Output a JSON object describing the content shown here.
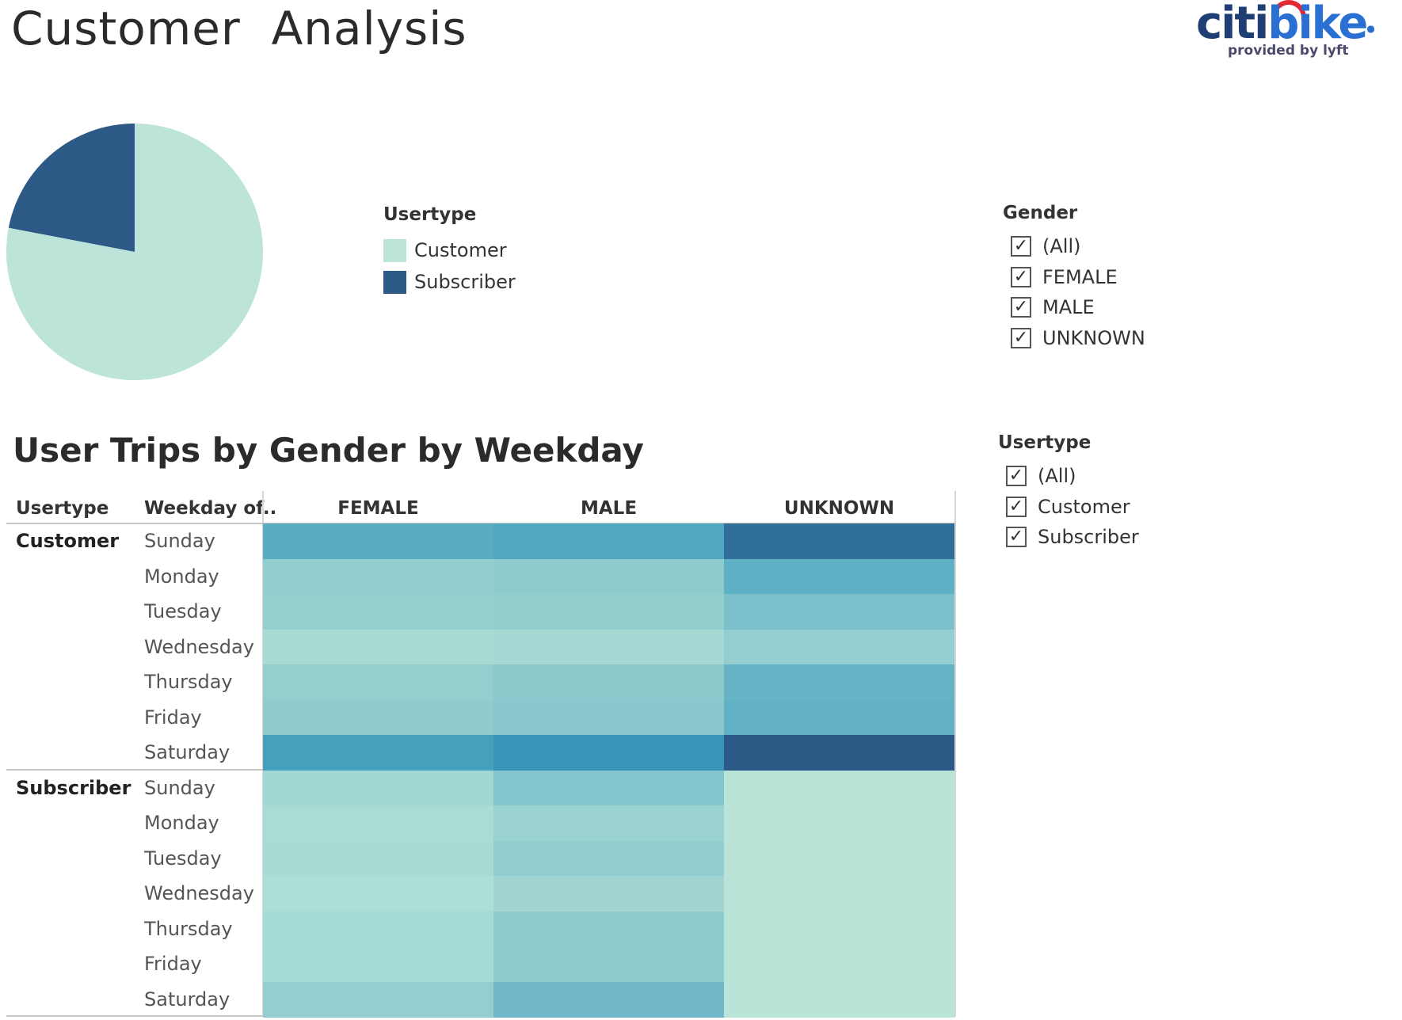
{
  "header": {
    "title": "Customer  Analysis"
  },
  "logo": {
    "word_citi": "citi",
    "word_bike": "bike",
    "tagline": "provided by lyft"
  },
  "pie_legend": {
    "title": "Usertype",
    "items": [
      {
        "label": "Customer",
        "color": "#bce4d8"
      },
      {
        "label": "Subscriber",
        "color": "#2c5985"
      }
    ]
  },
  "pie_chart": {
    "type": "pie",
    "slices": [
      {
        "label": "Customer",
        "fraction": 0.78,
        "color": "#bce4d8"
      },
      {
        "label": "Subscriber",
        "fraction": 0.22,
        "color": "#2c5985"
      }
    ]
  },
  "gender_filter": {
    "title": "Gender",
    "options": [
      {
        "label": "(All)",
        "checked": true
      },
      {
        "label": "FEMALE",
        "checked": true
      },
      {
        "label": "MALE",
        "checked": true
      },
      {
        "label": "UNKNOWN",
        "checked": true
      }
    ]
  },
  "usertype_filter": {
    "title": "Usertype",
    "options": [
      {
        "label": "(All)",
        "checked": true
      },
      {
        "label": "Customer",
        "checked": true
      },
      {
        "label": "Subscriber",
        "checked": true
      }
    ]
  },
  "table": {
    "title": "User Trips by Gender by Weekday",
    "row_header_usertype": "Usertype",
    "row_header_weekday": "Weekday of..",
    "columns": [
      "FEMALE",
      "MALE",
      "UNKNOWN"
    ],
    "groups": [
      {
        "label": "Customer",
        "days": [
          "Sunday",
          "Monday",
          "Tuesday",
          "Wednesday",
          "Thursday",
          "Friday",
          "Saturday"
        ],
        "colors": [
          [
            "#5aadc1",
            "#52a8bf",
            "#306f98"
          ],
          [
            "#92cdcf",
            "#8ecbce",
            "#5eb0c4"
          ],
          [
            "#96cfd0",
            "#93cecf",
            "#7bbfca"
          ],
          [
            "#aadbd3",
            "#a6d9d3",
            "#95ced0"
          ],
          [
            "#94cecf",
            "#8cc9cd",
            "#65b3c5"
          ],
          [
            "#90ccce",
            "#8ac8cd",
            "#62b1c4"
          ],
          [
            "#45a0bd",
            "#3a96b8",
            "#2c5985"
          ]
        ]
      },
      {
        "label": "Subscriber",
        "days": [
          "Sunday",
          "Monday",
          "Tuesday",
          "Wednesday",
          "Thursday",
          "Friday",
          "Saturday"
        ],
        "colors": [
          [
            "#a2d7d3",
            "#84c5cd",
            "#bae4d8"
          ],
          [
            "#aadcd5",
            "#9ad2d1",
            "#bae4d8"
          ],
          [
            "#a8dbd4",
            "#92cdd0",
            "#bae4d8"
          ],
          [
            "#addfd6",
            "#a2d5d2",
            "#bae4d8"
          ],
          [
            "#a6dad4",
            "#8ecbce",
            "#bae4d8"
          ],
          [
            "#a6dad4",
            "#8ecbce",
            "#bae4d8"
          ],
          [
            "#94ced0",
            "#70b8c7",
            "#bae4d8"
          ]
        ]
      }
    ]
  },
  "chart_data": {
    "type": "heatmap",
    "title": "User Trips by Gender by Weekday",
    "columns": [
      "FEMALE",
      "MALE",
      "UNKNOWN"
    ],
    "rows": [
      [
        "Customer",
        "Sunday"
      ],
      [
        "Customer",
        "Monday"
      ],
      [
        "Customer",
        "Tuesday"
      ],
      [
        "Customer",
        "Wednesday"
      ],
      [
        "Customer",
        "Thursday"
      ],
      [
        "Customer",
        "Friday"
      ],
      [
        "Customer",
        "Saturday"
      ],
      [
        "Subscriber",
        "Sunday"
      ],
      [
        "Subscriber",
        "Monday"
      ],
      [
        "Subscriber",
        "Tuesday"
      ],
      [
        "Subscriber",
        "Wednesday"
      ],
      [
        "Subscriber",
        "Thursday"
      ],
      [
        "Subscriber",
        "Friday"
      ],
      [
        "Subscriber",
        "Saturday"
      ]
    ],
    "legend": "none"
  }
}
